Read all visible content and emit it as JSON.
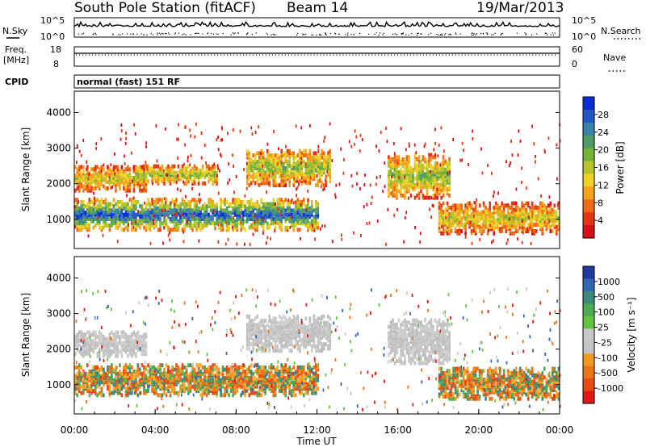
{
  "header": {
    "station": "South Pole Station (fitACF)",
    "beam": "Beam 14",
    "date": "19/Mar/2013"
  },
  "top_panels": {
    "nsky_label": "N.Sky",
    "nsky_ticks": [
      "10^5",
      "10^0"
    ],
    "nsearch_label": "N.Search",
    "nsearch_ticks": [
      "10^5",
      "10^0"
    ],
    "freq_label": "Freq.",
    "freq_unit": "[MHz]",
    "freq_ticks": [
      "18",
      "8"
    ],
    "nave_label": "Nave",
    "nave_ticks": [
      "60",
      "0"
    ],
    "cpid_label": "CPID",
    "cpid_text": "normal (fast) 151 RF"
  },
  "chart_data": [
    {
      "type": "heatmap",
      "name": "power",
      "ylabel": "Slant Range [km]",
      "y_ticks": [
        "4000",
        "3000",
        "2000",
        "1000"
      ],
      "ylim": [
        180,
        4600
      ],
      "xlim_hours": [
        0,
        24
      ],
      "colorbar_label": "Power [dB]",
      "colorbar_ticks": [
        "28",
        "24",
        "20",
        "16",
        "12",
        "8",
        "4"
      ],
      "colorbar_colors": [
        "#0b2bd6",
        "#2456c8",
        "#3a82a8",
        "#4f9a66",
        "#76b13a",
        "#b6c52c",
        "#f0d226",
        "#f3a21e",
        "#ef6a16",
        "#e43614",
        "#d81018"
      ],
      "echo_bands": [
        {
          "t0": 0.0,
          "t1": 3.6,
          "r0": 1750,
          "r1": 2450,
          "level": 4
        },
        {
          "t0": 3.0,
          "t1": 7.0,
          "r0": 1950,
          "r1": 2450,
          "level": 5
        },
        {
          "t0": 8.5,
          "t1": 12.6,
          "r0": 1900,
          "r1": 2900,
          "level": 5
        },
        {
          "t0": 0.0,
          "t1": 12.0,
          "r0": 650,
          "r1": 1500,
          "level": 8
        },
        {
          "t0": 15.5,
          "t1": 18.6,
          "r0": 1550,
          "r1": 2800,
          "level": 5
        },
        {
          "t0": 18.0,
          "t1": 24.0,
          "r0": 550,
          "r1": 1400,
          "level": 4
        }
      ]
    },
    {
      "type": "heatmap",
      "name": "velocity",
      "ylabel": "Slant Range [km]",
      "y_ticks": [
        "4000",
        "3000",
        "2000",
        "1000"
      ],
      "ylim": [
        180,
        4600
      ],
      "xlim_hours": [
        0,
        24
      ],
      "xlabel": "Time UT",
      "x_ticks": [
        "00:00",
        "04:00",
        "08:00",
        "12:00",
        "16:00",
        "20:00",
        "00:00"
      ],
      "colorbar_label": "Velocity [m s⁻¹]",
      "colorbar_ticks": [
        "1000",
        "500",
        "100",
        "25",
        "-25",
        "-100",
        "-500",
        "-1000"
      ],
      "colorbar_colors": [
        "#1f3aa0",
        "#3566b2",
        "#3e8a7a",
        "#4daa54",
        "#63c240",
        "#c8c8c8",
        "#c4c4c4",
        "#f09a22",
        "#ec7418",
        "#e84a16",
        "#e01818"
      ],
      "echo_bands": [
        {
          "t0": 0.0,
          "t1": 3.6,
          "r0": 1750,
          "r1": 2450,
          "class": "ground"
        },
        {
          "t0": 8.5,
          "t1": 12.6,
          "r0": 1900,
          "r1": 2900,
          "class": "ground"
        },
        {
          "t0": 0.0,
          "t1": 12.0,
          "r0": 650,
          "r1": 1500,
          "class": "away"
        },
        {
          "t0": 15.5,
          "t1": 18.6,
          "r0": 1550,
          "r1": 2800,
          "class": "ground"
        },
        {
          "t0": 18.0,
          "t1": 24.0,
          "r0": 550,
          "r1": 1400,
          "class": "away"
        }
      ]
    }
  ]
}
